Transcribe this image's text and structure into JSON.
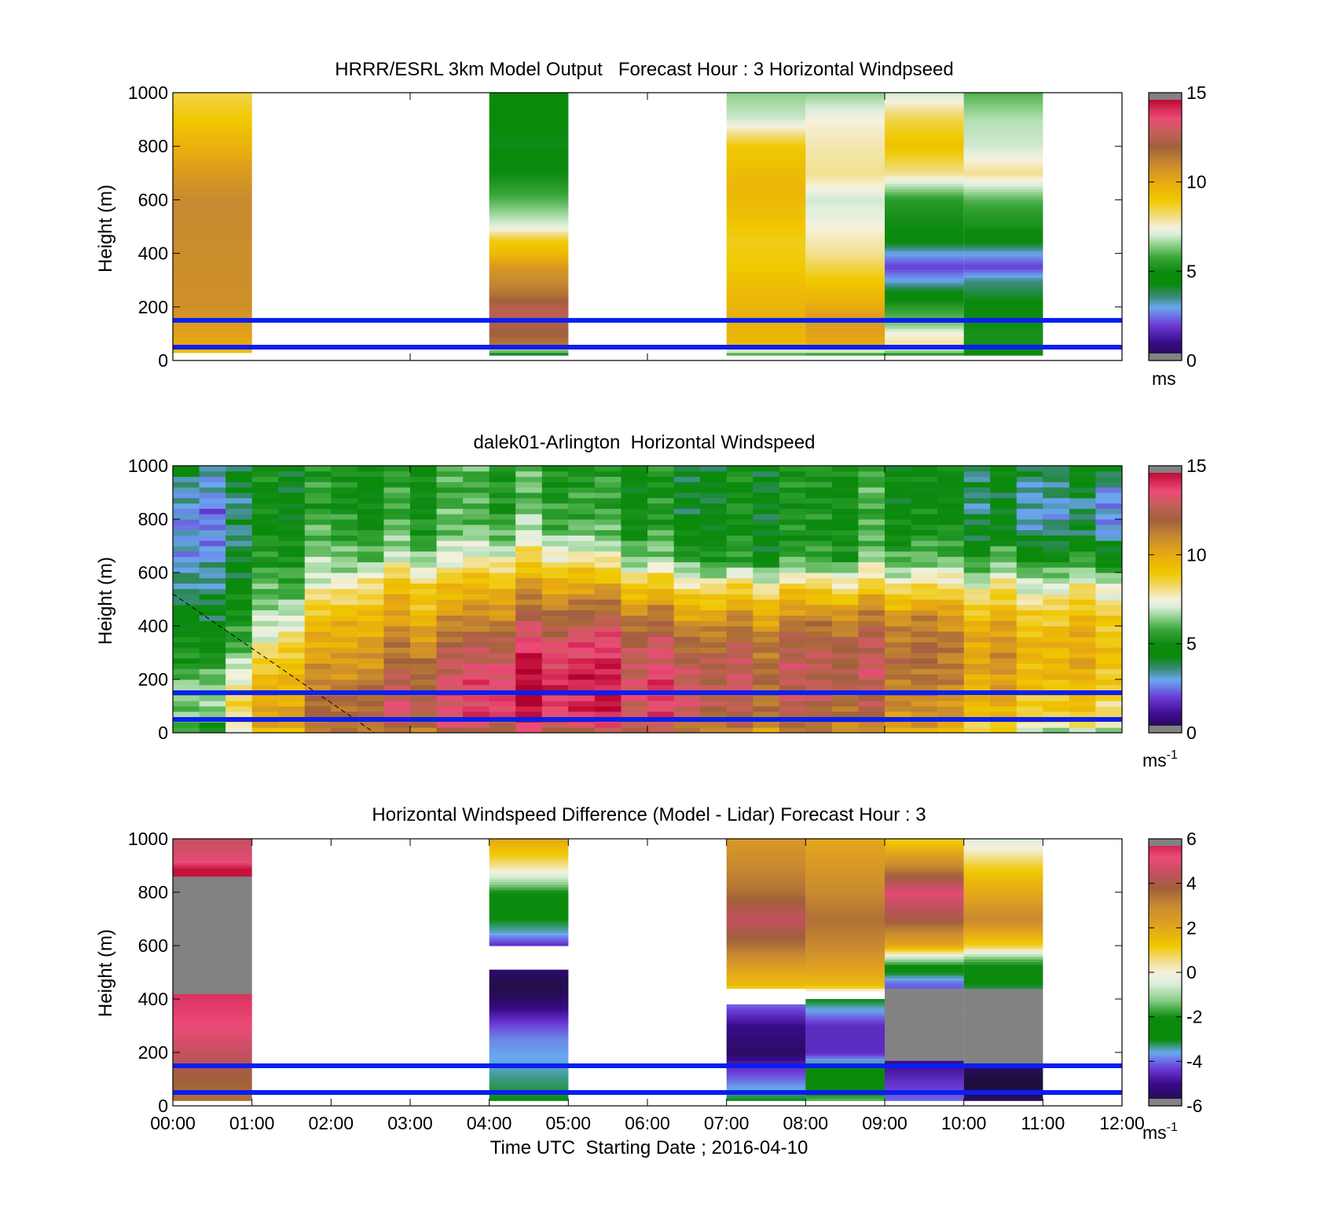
{
  "chart_data": [
    {
      "type": "heatmap",
      "title": "HRRR/ESRL 3km Model Output   Forecast Hour : 3 Horizontal Windpseed",
      "xlabel": "",
      "ylabel": "Height (m)",
      "xlim_hours": [
        0,
        12
      ],
      "ylim": [
        0,
        1000
      ],
      "yticks": [
        "0",
        "200",
        "400",
        "600",
        "800",
        "1000"
      ],
      "colorbar": {
        "min": 0,
        "max": 15,
        "ticks": [
          "0",
          "5",
          "10",
          "15"
        ],
        "unit_base": "ms",
        "unit_sup": "",
        "scale": "speed"
      },
      "reference_lines_m": [
        50,
        150
      ],
      "columns": [
        {
          "start_hour": 0,
          "end_hour": 1,
          "heights_m": [
            30,
            60,
            200,
            600,
            700,
            800,
            900,
            1000
          ],
          "values": [
            9.2,
            10.0,
            10.8,
            11.0,
            10.5,
            9.8,
            9.0,
            8.5
          ]
        },
        {
          "start_hour": 4,
          "end_hour": 5,
          "heights_m": [
            20,
            60,
            100,
            150,
            200,
            250,
            300,
            350,
            400,
            450,
            500,
            600,
            700,
            800,
            1000
          ],
          "values": [
            3.0,
            11.5,
            12.0,
            12.5,
            12.5,
            11.5,
            11.0,
            10.5,
            9.5,
            8.8,
            7.2,
            6.0,
            5.0,
            4.2,
            4.5
          ]
        },
        {
          "start_hour": 7,
          "end_hour": 8,
          "heights_m": [
            20,
            60,
            150,
            250,
            350,
            450,
            550,
            650,
            800,
            900,
            1000
          ],
          "values": [
            5.5,
            9.5,
            9.8,
            9.5,
            9.0,
            8.8,
            9.3,
            9.6,
            9.0,
            7.0,
            6.5
          ]
        },
        {
          "start_hour": 8,
          "end_hour": 9,
          "heights_m": [
            20,
            60,
            150,
            250,
            350,
            400,
            600,
            700,
            800,
            900,
            1000
          ],
          "values": [
            5.2,
            10.0,
            10.5,
            9.5,
            8.5,
            8.0,
            7.0,
            8.0,
            7.8,
            7.5,
            6.5
          ]
        },
        {
          "start_hour": 9,
          "end_hour": 10,
          "heights_m": [
            20,
            50,
            100,
            130,
            200,
            250,
            300,
            350,
            400,
            450,
            500,
            600,
            700,
            800,
            900,
            1000
          ],
          "values": [
            5.0,
            8.0,
            7.5,
            6.5,
            5.5,
            4.5,
            3.0,
            2.0,
            3.0,
            4.5,
            5.0,
            5.5,
            8.0,
            9.2,
            8.5,
            7.0
          ]
        },
        {
          "start_hour": 10,
          "end_hour": 11,
          "heights_m": [
            20,
            100,
            150,
            200,
            250,
            300,
            350,
            400,
            450,
            500,
            550,
            600,
            700,
            800,
            900,
            1000
          ],
          "values": [
            5.0,
            5.2,
            5.0,
            4.5,
            4.0,
            3.5,
            2.0,
            3.0,
            4.5,
            5.2,
            5.5,
            6.0,
            8.0,
            7.0,
            6.8,
            6.0
          ]
        }
      ]
    },
    {
      "type": "heatmap",
      "title": "dalek01-Arlington  Horizontal Windspeed",
      "xlabel": "",
      "ylabel": "Height (m)",
      "xlim_hours": [
        0,
        12
      ],
      "ylim": [
        0,
        1000
      ],
      "yticks": [
        "0",
        "200",
        "400",
        "600",
        "800",
        "1000"
      ],
      "colorbar": {
        "min": 0,
        "max": 15,
        "ticks": [
          "0",
          "5",
          "10",
          "15"
        ],
        "unit_base": "ms",
        "unit_sup": "-1",
        "scale": "speed"
      },
      "reference_lines_m": [
        50,
        150
      ],
      "time_step_min": 20,
      "height_step_m": 20,
      "height_max_m": 1000,
      "data_end_hour": 11.67,
      "profile_heights_m": [
        0,
        50,
        150,
        250,
        350,
        450,
        550,
        650,
        750,
        850,
        1000
      ],
      "profiles": [
        {
          "hour": 0.0,
          "values": [
            5.0,
            5.5,
            6.0,
            5.0,
            4.5,
            4.0,
            3.0,
            2.5,
            2.5,
            2.5,
            4.0
          ]
        },
        {
          "hour": 0.5,
          "values": [
            5.5,
            6.5,
            7.0,
            6.0,
            5.0,
            4.5,
            4.0,
            3.5,
            3.0,
            3.0,
            4.0
          ]
        },
        {
          "hour": 1.0,
          "values": [
            8.0,
            9.5,
            9.0,
            7.5,
            6.0,
            5.5,
            5.0,
            4.5,
            4.0,
            4.0,
            4.5
          ]
        },
        {
          "hour": 1.5,
          "values": [
            9.5,
            10.5,
            10.0,
            9.5,
            8.5,
            7.0,
            6.0,
            5.5,
            5.0,
            4.5,
            4.5
          ]
        },
        {
          "hour": 2.0,
          "values": [
            10.5,
            11.5,
            11.0,
            10.0,
            9.5,
            9.0,
            7.0,
            6.0,
            5.5,
            5.0,
            5.0
          ]
        },
        {
          "hour": 2.5,
          "values": [
            11.0,
            12.5,
            12.0,
            11.0,
            10.5,
            9.5,
            8.5,
            6.5,
            5.5,
            5.0,
            5.0
          ]
        },
        {
          "hour": 3.0,
          "values": [
            11.5,
            13.0,
            13.0,
            12.0,
            11.0,
            10.0,
            9.5,
            7.0,
            6.0,
            5.5,
            5.5
          ]
        },
        {
          "hour": 3.5,
          "values": [
            12.0,
            13.5,
            13.5,
            13.0,
            12.0,
            10.5,
            9.5,
            7.5,
            6.5,
            6.0,
            6.0
          ]
        },
        {
          "hour": 4.0,
          "values": [
            12.0,
            14.0,
            14.0,
            13.5,
            12.5,
            11.0,
            10.0,
            8.0,
            6.5,
            6.0,
            6.0
          ]
        },
        {
          "hour": 4.5,
          "values": [
            12.0,
            14.0,
            14.5,
            14.0,
            13.0,
            11.5,
            10.0,
            8.0,
            6.5,
            5.5,
            5.5
          ]
        },
        {
          "hour": 5.0,
          "values": [
            12.0,
            13.5,
            14.0,
            14.0,
            13.0,
            11.5,
            10.0,
            8.0,
            6.0,
            5.5,
            5.0
          ]
        },
        {
          "hour": 5.5,
          "values": [
            12.0,
            13.5,
            14.0,
            13.5,
            13.0,
            11.5,
            9.5,
            7.0,
            5.5,
            5.0,
            5.0
          ]
        },
        {
          "hour": 6.0,
          "values": [
            12.0,
            13.0,
            13.5,
            13.0,
            12.5,
            11.0,
            9.0,
            6.5,
            5.5,
            5.0,
            5.0
          ]
        },
        {
          "hour": 6.5,
          "values": [
            11.5,
            13.0,
            13.5,
            13.0,
            12.0,
            10.5,
            8.5,
            6.0,
            5.0,
            4.5,
            4.5
          ]
        },
        {
          "hour": 7.0,
          "values": [
            11.0,
            12.5,
            13.0,
            13.0,
            12.0,
            10.5,
            8.5,
            5.5,
            5.0,
            5.0,
            5.0
          ]
        },
        {
          "hour": 7.5,
          "values": [
            11.0,
            12.0,
            12.5,
            12.5,
            12.0,
            10.5,
            8.5,
            5.5,
            5.0,
            5.0,
            5.0
          ]
        },
        {
          "hour": 8.0,
          "values": [
            10.5,
            12.0,
            12.5,
            12.5,
            12.0,
            10.5,
            8.5,
            5.5,
            5.0,
            5.0,
            5.0
          ]
        },
        {
          "hour": 8.5,
          "values": [
            10.5,
            11.5,
            12.0,
            12.5,
            12.0,
            10.5,
            8.0,
            5.5,
            5.0,
            5.0,
            5.0
          ]
        },
        {
          "hour": 9.0,
          "values": [
            10.0,
            11.0,
            11.5,
            12.0,
            11.5,
            10.5,
            8.0,
            6.0,
            5.0,
            5.0,
            5.0
          ]
        },
        {
          "hour": 9.5,
          "values": [
            9.5,
            10.5,
            11.0,
            11.5,
            11.5,
            10.5,
            8.0,
            6.0,
            5.0,
            4.5,
            4.5
          ]
        },
        {
          "hour": 10.0,
          "values": [
            9.0,
            10.0,
            10.5,
            11.0,
            11.0,
            10.0,
            8.0,
            6.0,
            5.0,
            4.5,
            4.5
          ]
        },
        {
          "hour": 10.5,
          "values": [
            8.0,
            9.5,
            10.0,
            10.5,
            10.5,
            9.5,
            8.0,
            6.0,
            4.5,
            4.0,
            4.5
          ]
        },
        {
          "hour": 11.0,
          "values": [
            7.0,
            9.0,
            9.5,
            10.0,
            10.0,
            9.0,
            7.5,
            5.5,
            4.0,
            3.5,
            4.5
          ]
        },
        {
          "hour": 11.67,
          "values": [
            6.0,
            8.5,
            9.0,
            9.5,
            9.5,
            9.0,
            7.5,
            5.0,
            3.5,
            3.0,
            4.5
          ]
        }
      ],
      "dashed_line": {
        "from": [
          0,
          520
        ],
        "to": [
          2.55,
          0
        ]
      }
    },
    {
      "type": "heatmap",
      "title": "Horizontal Windspeed Difference (Model - Lidar) Forecast Hour : 3",
      "xlabel": "Time UTC  Starting Date ; 2016-04-10",
      "ylabel": "Height (m)",
      "xlim_hours": [
        0,
        12
      ],
      "ylim": [
        0,
        1000
      ],
      "xticks": [
        "00:00",
        "01:00",
        "02:00",
        "03:00",
        "04:00",
        "05:00",
        "06:00",
        "07:00",
        "08:00",
        "09:00",
        "10:00",
        "11:00",
        "12:00"
      ],
      "yticks": [
        "0",
        "200",
        "400",
        "600",
        "800",
        "1000"
      ],
      "colorbar": {
        "min": -6,
        "max": 6,
        "ticks": [
          "-6",
          "-4",
          "-2",
          "0",
          "2",
          "4",
          "6"
        ],
        "unit_base": "ms",
        "unit_sup": "-1",
        "scale": "diff"
      },
      "reference_lines_m": [
        50,
        150
      ],
      "columns": [
        {
          "start_hour": 0,
          "end_hour": 1,
          "heights_m": [
            20,
            100,
            200,
            300,
            410,
            870,
            920,
            1000
          ],
          "values": [
            3.5,
            3.8,
            4.5,
            5.2,
            5.5,
            6.5,
            5.0,
            4.5
          ],
          "saturated": [
            [
              420,
              860
            ]
          ]
        },
        {
          "start_hour": 4,
          "end_hour": 5,
          "heights_m": [
            20,
            150,
            250,
            300,
            350,
            400,
            450,
            500,
            600,
            650,
            700,
            800,
            900,
            1000
          ],
          "values": [
            -3.0,
            -3.5,
            -3.8,
            -4.2,
            -4.8,
            -5.5,
            -5.8,
            -5.5,
            -4.5,
            -3.5,
            -3.0,
            -2.0,
            0.5,
            2.0
          ],
          "gaps": [
            [
              510,
              600
            ]
          ]
        },
        {
          "start_hour": 7,
          "end_hour": 8,
          "heights_m": [
            20,
            100,
            150,
            200,
            300,
            380,
            450,
            500,
            600,
            700,
            800,
            900,
            1000
          ],
          "values": [
            -3.0,
            -4.0,
            -4.5,
            -5.5,
            -5.0,
            -4.0,
            1.5,
            2.0,
            3.5,
            4.5,
            3.5,
            3.0,
            2.5
          ],
          "gaps": [
            [
              385,
              440
            ]
          ]
        },
        {
          "start_hour": 8,
          "end_hour": 9,
          "heights_m": [
            20,
            100,
            150,
            200,
            300,
            400,
            450,
            500,
            600,
            700,
            800,
            900,
            1000
          ],
          "values": [
            -1.5,
            -3.0,
            -3.0,
            -4.5,
            -4.5,
            -3.0,
            1.5,
            2.0,
            3.0,
            3.5,
            3.0,
            2.5,
            2.0
          ],
          "gaps": [
            [
              405,
              425
            ]
          ]
        },
        {
          "start_hour": 9,
          "end_hour": 10,
          "heights_m": [
            20,
            100,
            160,
            460,
            500,
            550,
            600,
            700,
            800,
            900,
            1000
          ],
          "values": [
            -4.0,
            -4.5,
            -5.0,
            -4.0,
            -3.0,
            -1.0,
            2.0,
            4.0,
            5.0,
            3.0,
            1.0
          ],
          "saturated": [
            [
              170,
              440
            ]
          ]
        },
        {
          "start_hour": 10,
          "end_hour": 11,
          "heights_m": [
            20,
            80,
            120,
            140,
            460,
            500,
            550,
            600,
            700,
            800,
            900,
            1000
          ],
          "values": [
            -5.5,
            -6.0,
            -5.8,
            -5.5,
            -3.0,
            -2.5,
            -1.5,
            1.0,
            3.0,
            2.0,
            1.0,
            -0.5
          ],
          "saturated": [
            [
              150,
              440
            ]
          ]
        }
      ]
    }
  ]
}
